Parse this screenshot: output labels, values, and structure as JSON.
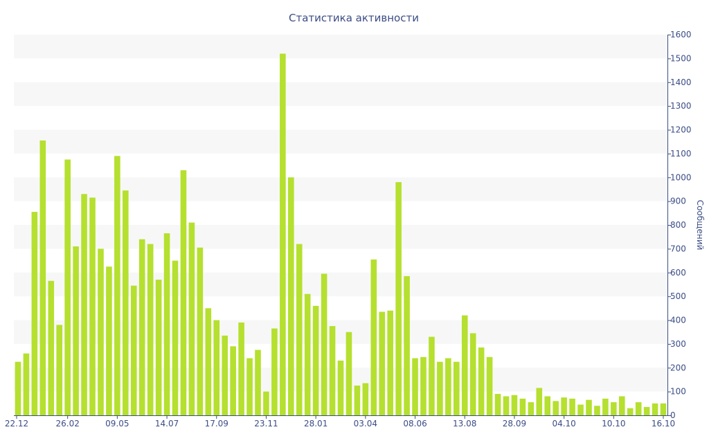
{
  "chart_data": {
    "type": "bar",
    "title": "Статистика активности",
    "xlabel": "",
    "ylabel": "Сообщений",
    "y_axis_position": "right",
    "ylim": [
      0,
      1600
    ],
    "yticks": [
      0,
      100,
      200,
      300,
      400,
      500,
      600,
      700,
      800,
      900,
      1000,
      1100,
      1200,
      1300,
      1400,
      1500,
      1600
    ],
    "xtick_labels": [
      {
        "index": 0,
        "label": "22.12"
      },
      {
        "index": 6,
        "label": "26.02"
      },
      {
        "index": 12,
        "label": "09.05"
      },
      {
        "index": 18,
        "label": "14.07"
      },
      {
        "index": 24,
        "label": "17.09"
      },
      {
        "index": 30,
        "label": "23.11"
      },
      {
        "index": 36,
        "label": "28.01"
      },
      {
        "index": 42,
        "label": "03.04"
      },
      {
        "index": 48,
        "label": "08.06"
      },
      {
        "index": 54,
        "label": "13.08"
      },
      {
        "index": 60,
        "label": "28.09"
      },
      {
        "index": 66,
        "label": "04.10"
      },
      {
        "index": 72,
        "label": "10.10"
      },
      {
        "index": 78,
        "label": "16.10"
      }
    ],
    "values": [
      225,
      260,
      855,
      1155,
      565,
      380,
      1075,
      710,
      930,
      915,
      700,
      625,
      1090,
      945,
      545,
      740,
      720,
      570,
      765,
      650,
      1030,
      810,
      705,
      450,
      400,
      335,
      290,
      390,
      240,
      275,
      100,
      365,
      1520,
      1000,
      720,
      510,
      460,
      595,
      375,
      230,
      350,
      125,
      135,
      655,
      435,
      440,
      980,
      585,
      240,
      245,
      330,
      225,
      240,
      225,
      420,
      345,
      285,
      245,
      90,
      80,
      85,
      70,
      55,
      115,
      80,
      60,
      75,
      70,
      45,
      65,
      40,
      70,
      55,
      80,
      30,
      55,
      35,
      50,
      50
    ],
    "colors": {
      "bar": "#b5e02f",
      "band": "#f7f7f7",
      "text": "#3a4c85"
    },
    "grid": "alternating horizontal bands"
  }
}
